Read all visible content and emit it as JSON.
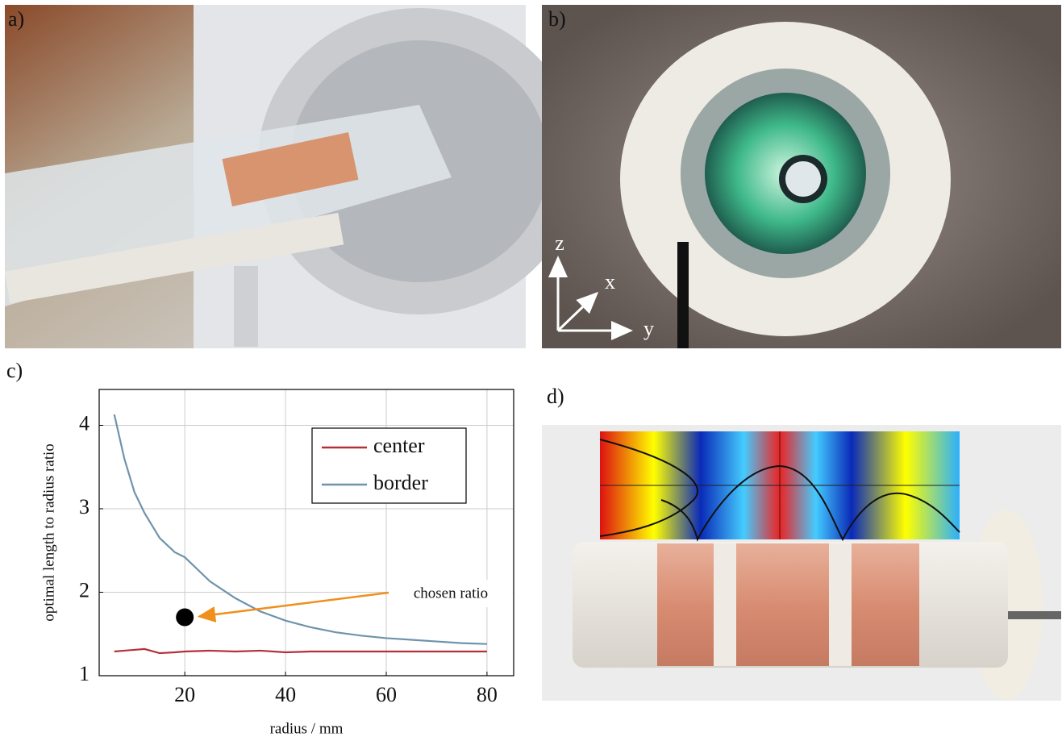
{
  "panels": {
    "a": "a)",
    "b": "b)",
    "c": "c)",
    "d": "d)"
  },
  "axes_labels": {
    "b": {
      "z": "z",
      "x": "x",
      "y": "y"
    }
  },
  "chart_data": {
    "type": "line",
    "xlabel": "radius / mm",
    "ylabel": "optimal length to radius ratio",
    "x": [
      6,
      8,
      10,
      12,
      15,
      18,
      20,
      25,
      30,
      35,
      40,
      45,
      50,
      55,
      60,
      65,
      70,
      75,
      80
    ],
    "series": [
      {
        "name": "center",
        "color": "#b5303a",
        "values": [
          1.29,
          1.3,
          1.31,
          1.32,
          1.27,
          1.28,
          1.29,
          1.3,
          1.29,
          1.3,
          1.28,
          1.29,
          1.29,
          1.29,
          1.29,
          1.29,
          1.29,
          1.29,
          1.29
        ]
      },
      {
        "name": "border",
        "color": "#6f93ab",
        "values": [
          4.13,
          3.6,
          3.2,
          2.95,
          2.65,
          2.48,
          2.42,
          2.13,
          1.93,
          1.77,
          1.66,
          1.58,
          1.52,
          1.48,
          1.45,
          1.43,
          1.41,
          1.39,
          1.38
        ]
      }
    ],
    "xlim": [
      3,
      85.3
    ],
    "ylim": [
      1,
      4.43
    ],
    "xticks": [
      20,
      40,
      60,
      80
    ],
    "yticks": [
      1,
      2,
      3,
      4
    ],
    "grid": true,
    "legend": "upper-right",
    "annotation": {
      "text": "chosen ratio",
      "x": 20,
      "y": 1.7,
      "color": "#f0901c"
    }
  }
}
